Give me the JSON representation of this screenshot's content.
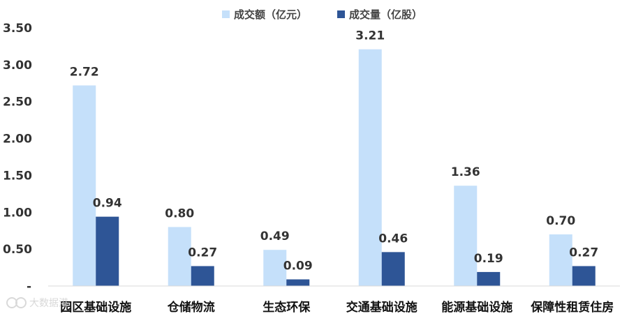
{
  "chart_data": {
    "type": "bar",
    "categories": [
      "园区基础设施",
      "仓储物流",
      "生态环保",
      "交通基础设施",
      "能源基础设施",
      "保障性租赁住房"
    ],
    "series": [
      {
        "name": "成交额（亿元）",
        "values": [
          2.72,
          0.8,
          0.49,
          3.21,
          1.36,
          0.7
        ],
        "color": "#c5e0fa"
      },
      {
        "name": "成交量（亿股）",
        "values": [
          0.94,
          0.27,
          0.09,
          0.46,
          0.19,
          0.27
        ],
        "color": "#2e5596"
      }
    ],
    "y_ticks": [
      "-",
      "0.50",
      "1.00",
      "1.50",
      "2.00",
      "2.50",
      "3.00",
      "3.50"
    ],
    "ylim": [
      0,
      3.5
    ],
    "data_labels": true,
    "grid": false,
    "legend_position": "top-center"
  },
  "watermark": {
    "text": "大数据港",
    "icon": "watermark-logo-icon"
  }
}
